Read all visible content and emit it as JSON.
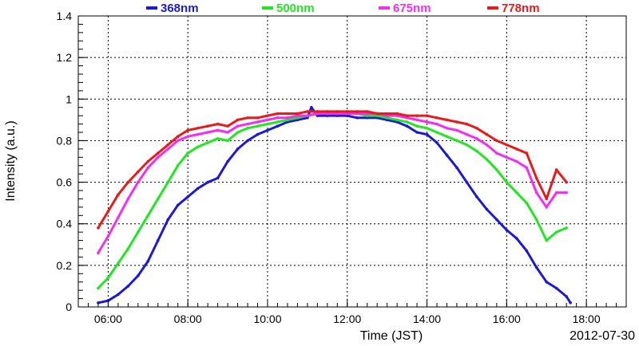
{
  "chart_data": {
    "type": "scatter",
    "title": "",
    "xlabel": "Time (JST)",
    "ylabel": "Intensity (a.u.)",
    "date_label": "2012-07-30",
    "xlim": [
      5.25,
      19.0
    ],
    "ylim": [
      0,
      1.4
    ],
    "x_ticks": [
      6,
      8,
      10,
      12,
      14,
      16,
      18
    ],
    "x_tick_labels": [
      "06:00",
      "08:00",
      "10:00",
      "12:00",
      "14:00",
      "16:00",
      "18:00"
    ],
    "y_ticks": [
      0,
      0.2,
      0.4,
      0.6,
      0.8,
      1,
      1.2,
      1.4
    ],
    "y_tick_labels": [
      "0",
      "0.2",
      "0.4",
      "0.6",
      "0.8",
      "1",
      "1.2",
      "1.4"
    ],
    "grid": true,
    "legend_position": "top",
    "series": [
      {
        "name": "368nm",
        "color": "#1a1ad6",
        "x": [
          5.75,
          6.0,
          6.25,
          6.5,
          6.75,
          7.0,
          7.25,
          7.5,
          7.75,
          8.0,
          8.25,
          8.5,
          8.75,
          9.0,
          9.25,
          9.5,
          9.75,
          10.0,
          10.25,
          10.5,
          10.75,
          11.0,
          11.1,
          11.25,
          11.5,
          11.75,
          12.0,
          12.25,
          12.5,
          12.75,
          13.0,
          13.25,
          13.5,
          13.75,
          14.0,
          14.25,
          14.5,
          14.75,
          15.0,
          15.25,
          15.5,
          15.75,
          16.0,
          16.25,
          16.5,
          16.75,
          17.0,
          17.25,
          17.5,
          17.6
        ],
        "values": [
          0.02,
          0.03,
          0.06,
          0.1,
          0.15,
          0.22,
          0.32,
          0.42,
          0.49,
          0.53,
          0.57,
          0.6,
          0.62,
          0.7,
          0.76,
          0.8,
          0.83,
          0.85,
          0.87,
          0.89,
          0.9,
          0.91,
          0.96,
          0.92,
          0.92,
          0.92,
          0.92,
          0.91,
          0.91,
          0.91,
          0.9,
          0.89,
          0.87,
          0.84,
          0.83,
          0.79,
          0.73,
          0.67,
          0.6,
          0.53,
          0.47,
          0.42,
          0.37,
          0.33,
          0.27,
          0.19,
          0.12,
          0.09,
          0.05,
          0.02
        ]
      },
      {
        "name": "500nm",
        "color": "#22e622",
        "x": [
          5.75,
          6.0,
          6.25,
          6.5,
          6.75,
          7.0,
          7.25,
          7.5,
          7.75,
          8.0,
          8.25,
          8.5,
          8.75,
          9.0,
          9.25,
          9.5,
          9.75,
          10.0,
          10.25,
          10.5,
          10.75,
          11.0,
          11.25,
          11.5,
          11.75,
          12.0,
          12.25,
          12.5,
          12.75,
          13.0,
          13.25,
          13.5,
          13.75,
          14.0,
          14.25,
          14.5,
          14.75,
          15.0,
          15.25,
          15.5,
          15.75,
          16.0,
          16.25,
          16.5,
          16.75,
          17.0,
          17.25,
          17.5
        ],
        "values": [
          0.09,
          0.14,
          0.21,
          0.28,
          0.36,
          0.44,
          0.52,
          0.6,
          0.68,
          0.74,
          0.77,
          0.79,
          0.81,
          0.8,
          0.84,
          0.86,
          0.87,
          0.88,
          0.89,
          0.9,
          0.91,
          0.92,
          0.93,
          0.93,
          0.93,
          0.93,
          0.93,
          0.92,
          0.92,
          0.91,
          0.9,
          0.89,
          0.87,
          0.86,
          0.84,
          0.82,
          0.8,
          0.78,
          0.75,
          0.71,
          0.66,
          0.6,
          0.55,
          0.5,
          0.42,
          0.32,
          0.36,
          0.38
        ]
      },
      {
        "name": "675nm",
        "color": "#f22ef2",
        "x": [
          5.75,
          6.0,
          6.25,
          6.5,
          6.75,
          7.0,
          7.25,
          7.5,
          7.75,
          8.0,
          8.25,
          8.5,
          8.75,
          9.0,
          9.25,
          9.5,
          9.75,
          10.0,
          10.25,
          10.5,
          10.75,
          11.0,
          11.25,
          11.5,
          11.75,
          12.0,
          12.25,
          12.5,
          12.75,
          13.0,
          13.25,
          13.5,
          13.75,
          14.0,
          14.25,
          14.5,
          14.75,
          15.0,
          15.25,
          15.5,
          15.75,
          16.0,
          16.25,
          16.5,
          16.75,
          17.0,
          17.25,
          17.5
        ],
        "values": [
          0.26,
          0.34,
          0.43,
          0.52,
          0.6,
          0.67,
          0.72,
          0.76,
          0.8,
          0.82,
          0.83,
          0.84,
          0.85,
          0.84,
          0.87,
          0.88,
          0.89,
          0.9,
          0.91,
          0.91,
          0.92,
          0.92,
          0.93,
          0.93,
          0.93,
          0.93,
          0.93,
          0.93,
          0.93,
          0.92,
          0.92,
          0.91,
          0.9,
          0.89,
          0.88,
          0.86,
          0.85,
          0.83,
          0.81,
          0.78,
          0.74,
          0.72,
          0.7,
          0.67,
          0.55,
          0.48,
          0.55,
          0.55
        ]
      },
      {
        "name": "778nm",
        "color": "#e81a1a",
        "x": [
          5.75,
          6.0,
          6.25,
          6.5,
          6.75,
          7.0,
          7.25,
          7.5,
          7.75,
          8.0,
          8.25,
          8.5,
          8.75,
          9.0,
          9.25,
          9.5,
          9.75,
          10.0,
          10.25,
          10.5,
          10.75,
          11.0,
          11.25,
          11.5,
          11.75,
          12.0,
          12.25,
          12.5,
          12.75,
          13.0,
          13.25,
          13.5,
          13.75,
          14.0,
          14.25,
          14.5,
          14.75,
          15.0,
          15.25,
          15.5,
          15.75,
          16.0,
          16.25,
          16.5,
          16.75,
          17.0,
          17.25,
          17.5
        ],
        "values": [
          0.38,
          0.46,
          0.54,
          0.6,
          0.65,
          0.7,
          0.74,
          0.78,
          0.82,
          0.85,
          0.86,
          0.87,
          0.88,
          0.87,
          0.9,
          0.91,
          0.91,
          0.92,
          0.93,
          0.93,
          0.93,
          0.94,
          0.94,
          0.94,
          0.94,
          0.94,
          0.94,
          0.94,
          0.93,
          0.93,
          0.93,
          0.92,
          0.92,
          0.92,
          0.91,
          0.9,
          0.89,
          0.88,
          0.86,
          0.83,
          0.8,
          0.78,
          0.76,
          0.74,
          0.62,
          0.52,
          0.66,
          0.6
        ]
      }
    ]
  }
}
